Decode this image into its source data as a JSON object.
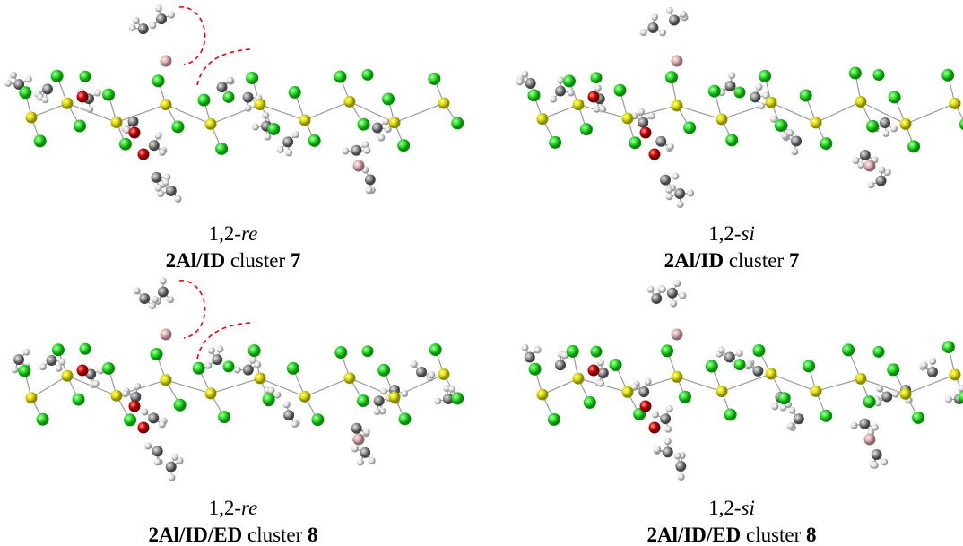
{
  "panels": [
    {
      "line1": {
        "prefix": "1,2-",
        "stereo": "re"
      },
      "line2": {
        "bold": "2Al/ID",
        "text": "cluster",
        "number": "7"
      }
    },
    {
      "line1": {
        "prefix": "1,2-",
        "stereo": "si"
      },
      "line2": {
        "bold": "2Al/ID",
        "text": "cluster",
        "number": "7"
      }
    },
    {
      "line1": {
        "prefix": "1,2-",
        "stereo": "re"
      },
      "line2": {
        "bold": "2Al/ID/ED",
        "text": "cluster",
        "number": "8"
      }
    },
    {
      "line1": {
        "prefix": "1,2-",
        "stereo": "si"
      },
      "line2": {
        "bold": "2Al/ID/ED",
        "text": "cluster",
        "number": "8"
      }
    }
  ]
}
